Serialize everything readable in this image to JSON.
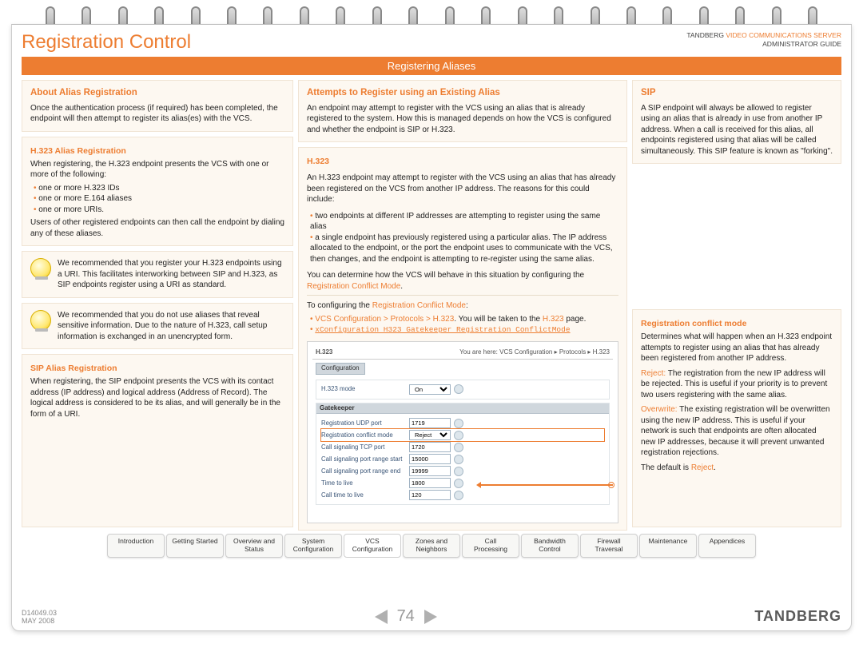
{
  "header": {
    "page_title": "Registration Control",
    "brand_line1_plain": "TANDBERG ",
    "brand_line1_orange": "VIDEO COMMUNICATIONS SERVER",
    "brand_line2": "ADMINISTRATOR GUIDE",
    "section_bar": "Registering Aliases"
  },
  "left": {
    "about": {
      "title": "About Alias Registration",
      "body": "Once the authentication process (if required) has been completed, the endpoint will then attempt to register its alias(es) with the VCS."
    },
    "h323": {
      "title": "H.323 Alias Registration",
      "intro": "When registering, the H.323 endpoint presents the VCS with one or more of the following:",
      "items": [
        "one or more H.323 IDs",
        "one or more E.164 aliases",
        "one or more URIs."
      ],
      "outro": "Users of other registered endpoints can then call the endpoint by dialing any of these aliases."
    },
    "tip1": "We recommended that you register your H.323 endpoints using a URI. This facilitates interworking between SIP and H.323, as SIP endpoints register using a URI as standard.",
    "tip2": "We recommended that you do not use aliases that reveal sensitive information. Due to the nature of H.323, call setup information is exchanged in an unencrypted form.",
    "sip": {
      "title": "SIP Alias Registration",
      "body": "When registering, the SIP endpoint presents the VCS with its contact address (IP address) and logical address (Address of Record). The logical address is considered to be its alias, and will generally be in the form of a URI."
    }
  },
  "mid": {
    "attempts": {
      "title": "Attempts to Register using an Existing Alias",
      "body": "An endpoint may attempt to register with the VCS using an alias that is already registered to the system. How this is managed depends on how the VCS is configured and whether the endpoint is SIP or H.323."
    },
    "h323": {
      "title": "H.323",
      "intro": "An H.323 endpoint may attempt to register with the VCS using an alias that has already been registered on the VCS from another IP address. The reasons for this could include:",
      "items": [
        "two endpoints at different IP addresses are attempting to register using the same alias",
        "a single endpoint has previously registered using a particular alias. The IP address allocated to the endpoint, or the port the endpoint uses to communicate with the VCS, then changes, and the endpoint is attempting to re-register using the same alias."
      ],
      "outro_pre": "You can determine how the VCS will behave in this situation by configuring the ",
      "outro_link": "Registration Conflict Mode",
      "config_lead": "To configuring the ",
      "config_link": "Registration Conflict Mode",
      "config_tail": ":",
      "steps_pre1": "VCS Configuration > Protocols > H.323",
      "steps_post1_a": ". You will be taken to the ",
      "steps_post1_link": "H.323",
      "steps_post1_b": " page.",
      "step2_mono": "xConfiguration H323 Gatekeeper Registration ConflictMode"
    },
    "screenshot": {
      "title": "H.323",
      "breadcrumb": "You are here: VCS Configuration ▸ Protocols ▸ H.323",
      "tab": "Configuration",
      "group1_title": "",
      "h323_mode_value": "On",
      "group2_title": "Gatekeeper",
      "rows": {
        "reg_udp_label": "Registration UDP port",
        "reg_udp_val": "1719",
        "conflict_label": "Registration conflict mode",
        "conflict_val": "Reject",
        "sig_tcp_label": "Call signaling TCP port",
        "sig_tcp_val": "1720",
        "range_start_label": "Call signaling port range start",
        "range_start_val": "15000",
        "range_end_label": "Call signaling port range end",
        "range_end_val": "19999",
        "ttl_label": "Time to live",
        "ttl_val": "1800",
        "cttl_label": "Call time to live",
        "cttl_val": "120"
      }
    }
  },
  "right": {
    "sip": {
      "title": "SIP",
      "body": "A SIP endpoint will always be allowed to register using an alias that is already in use from another IP address. When a call is received for this alias, all endpoints registered using that alias will be called simultaneously. This SIP feature is known as \"forking\"."
    },
    "conflict": {
      "title": "Registration conflict mode",
      "intro": "Determines what will happen when an H.323 endpoint attempts to register using an alias that has already been registered from another IP address.",
      "reject_label": "Reject:",
      "reject_body": " The registration from the new IP address will be rejected. This is useful if your priority is to prevent two users registering with the same alias.",
      "overwrite_label": "Overwrite:",
      "overwrite_body": " The existing registration will be overwritten using the new IP address. This is useful if your network is such that endpoints are often allocated new IP addresses, because it will prevent unwanted registration rejections.",
      "default_pre": "The default is ",
      "default_val": "Reject",
      "default_post": "."
    }
  },
  "tabs": [
    "Introduction",
    "Getting Started",
    "Overview and Status",
    "System Configuration",
    "VCS Configuration",
    "Zones and Neighbors",
    "Call Processing",
    "Bandwidth Control",
    "Firewall Traversal",
    "Maintenance",
    "Appendices"
  ],
  "tabs_active_index": 4,
  "footer": {
    "doc_id": "D14049.03",
    "date": "MAY 2008",
    "page_number": "74",
    "logo": "TANDBERG"
  }
}
